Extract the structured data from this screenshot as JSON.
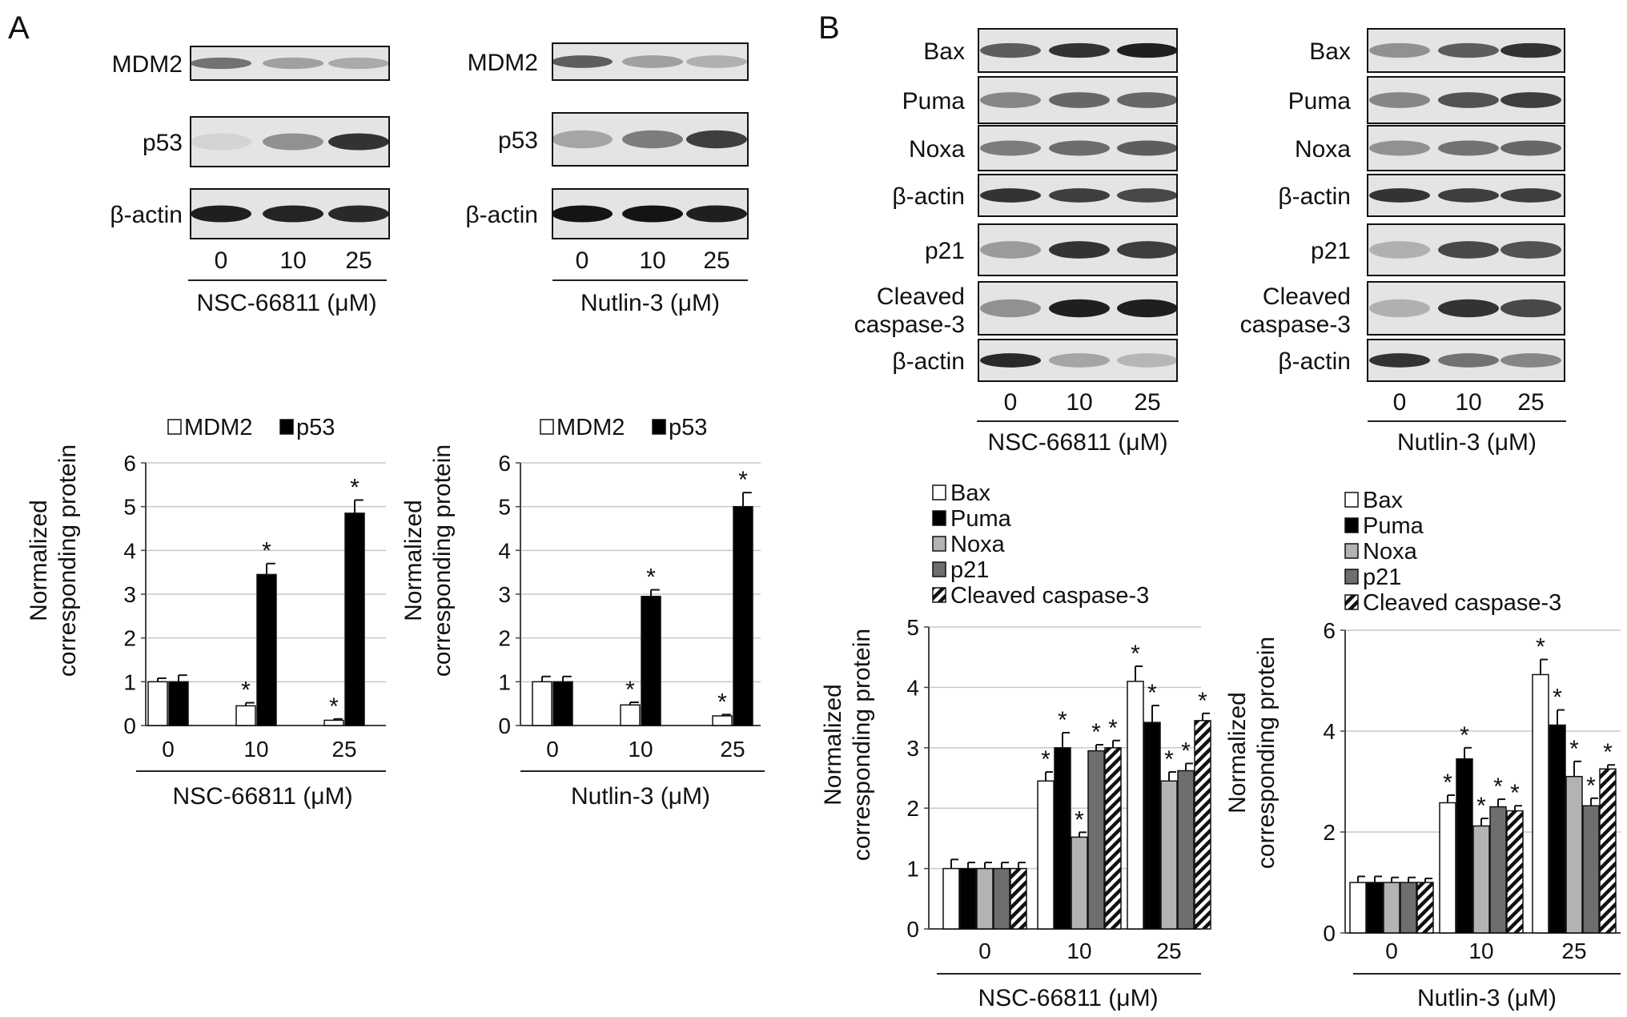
{
  "panels": {
    "a": {
      "label": "A",
      "blots": [
        {
          "bands": [
            "MDM2",
            "p53",
            "β-actin"
          ],
          "doses": [
            "0",
            "10",
            "25"
          ],
          "treatment": "NSC-66811 (μM)",
          "intensity": [
            [
              0.55,
              0.32,
              0.28
            ],
            [
              0.08,
              0.4,
              0.85
            ],
            [
              0.95,
              0.92,
              0.9
            ]
          ]
        },
        {
          "bands": [
            "MDM2",
            "p53",
            "β-actin"
          ],
          "doses": [
            "0",
            "10",
            "25"
          ],
          "treatment": "Nutlin-3 (μM)",
          "intensity": [
            [
              0.65,
              0.32,
              0.25
            ],
            [
              0.3,
              0.5,
              0.8
            ],
            [
              1.0,
              1.0,
              0.95
            ]
          ]
        }
      ]
    },
    "b": {
      "label": "B",
      "blots": [
        {
          "bands": [
            "Bax",
            "Puma",
            "Noxa",
            "β-actin",
            "p21",
            "Cleaved caspase-3",
            "β-actin"
          ],
          "doses": [
            "0",
            "10",
            "25"
          ],
          "treatment": "NSC-66811 (μM)",
          "intensity": [
            [
              0.65,
              0.85,
              0.95
            ],
            [
              0.45,
              0.6,
              0.6
            ],
            [
              0.5,
              0.58,
              0.65
            ],
            [
              0.85,
              0.8,
              0.75
            ],
            [
              0.35,
              0.85,
              0.8
            ],
            [
              0.4,
              0.95,
              0.95
            ],
            [
              0.9,
              0.3,
              0.22
            ]
          ]
        },
        {
          "bands": [
            "Bax",
            "Puma",
            "Noxa",
            "β-actin",
            "p21",
            "Cleaved caspase-3",
            "β-actin"
          ],
          "doses": [
            "0",
            "10",
            "25"
          ],
          "treatment": "Nutlin-3 (μM)",
          "intensity": [
            [
              0.4,
              0.65,
              0.85
            ],
            [
              0.45,
              0.7,
              0.8
            ],
            [
              0.4,
              0.55,
              0.6
            ],
            [
              0.85,
              0.8,
              0.8
            ],
            [
              0.25,
              0.75,
              0.7
            ],
            [
              0.25,
              0.85,
              0.75
            ],
            [
              0.85,
              0.55,
              0.45
            ]
          ]
        }
      ]
    }
  },
  "chart_data": [
    {
      "type": "bar",
      "panel": "A",
      "categories": [
        "0",
        "10",
        "25"
      ],
      "xlabel": "NSC-66811 (μM)",
      "ylabel": [
        "Normalized",
        "corresponding protein"
      ],
      "ylim": [
        0,
        6
      ],
      "yticks": [
        0,
        1,
        2,
        3,
        4,
        5,
        6
      ],
      "grid": true,
      "legend": "top",
      "series": [
        {
          "name": "MDM2",
          "pattern": "white",
          "values": [
            1.0,
            0.45,
            0.12
          ],
          "errors": [
            0.08,
            0.07,
            0.03
          ],
          "sig": [
            false,
            true,
            true
          ]
        },
        {
          "name": "p53",
          "pattern": "black",
          "values": [
            1.0,
            3.45,
            4.85
          ],
          "errors": [
            0.15,
            0.25,
            0.3
          ],
          "sig": [
            false,
            true,
            true
          ]
        }
      ]
    },
    {
      "type": "bar",
      "panel": "A",
      "categories": [
        "0",
        "10",
        "25"
      ],
      "xlabel": "Nutlin-3 (μM)",
      "ylabel": [
        "Normalized",
        "corresponding protein"
      ],
      "ylim": [
        0,
        6
      ],
      "yticks": [
        0,
        1,
        2,
        3,
        4,
        5,
        6
      ],
      "grid": true,
      "legend": "top",
      "series": [
        {
          "name": "MDM2",
          "pattern": "white",
          "values": [
            1.0,
            0.47,
            0.22
          ],
          "errors": [
            0.12,
            0.06,
            0.03
          ],
          "sig": [
            false,
            true,
            true
          ]
        },
        {
          "name": "p53",
          "pattern": "black",
          "values": [
            1.0,
            2.95,
            5.0
          ],
          "errors": [
            0.12,
            0.15,
            0.32
          ],
          "sig": [
            false,
            true,
            true
          ]
        }
      ]
    },
    {
      "type": "bar",
      "panel": "B",
      "categories": [
        "0",
        "10",
        "25"
      ],
      "xlabel": "NSC-66811 (μM)",
      "ylabel": [
        "Normalized",
        "corresponding protein"
      ],
      "ylim": [
        0,
        5
      ],
      "yticks": [
        0,
        1,
        2,
        3,
        4,
        5
      ],
      "grid": true,
      "legend": "top-left",
      "series": [
        {
          "name": "Bax",
          "pattern": "white",
          "values": [
            1.0,
            2.45,
            4.1
          ],
          "errors": [
            0.15,
            0.15,
            0.25
          ],
          "sig": [
            false,
            true,
            true
          ]
        },
        {
          "name": "Puma",
          "pattern": "black",
          "values": [
            1.0,
            3.0,
            3.42
          ],
          "errors": [
            0.1,
            0.25,
            0.28
          ],
          "sig": [
            false,
            true,
            true
          ]
        },
        {
          "name": "Noxa",
          "pattern": "lightgray",
          "values": [
            1.0,
            1.52,
            2.45
          ],
          "errors": [
            0.1,
            0.08,
            0.15
          ],
          "sig": [
            false,
            true,
            true
          ]
        },
        {
          "name": "p21",
          "pattern": "darkgray",
          "values": [
            1.0,
            2.95,
            2.62
          ],
          "errors": [
            0.1,
            0.1,
            0.12
          ],
          "sig": [
            false,
            true,
            true
          ]
        },
        {
          "name": "Cleaved caspase-3",
          "pattern": "hatched",
          "values": [
            1.0,
            3.0,
            3.45
          ],
          "errors": [
            0.1,
            0.12,
            0.12
          ],
          "sig": [
            false,
            true,
            true
          ]
        }
      ]
    },
    {
      "type": "bar",
      "panel": "B",
      "categories": [
        "0",
        "10",
        "25"
      ],
      "xlabel": "Nutlin-3 (μM)",
      "ylabel": [
        "Normalized",
        "corresponding protein"
      ],
      "ylim": [
        0,
        6
      ],
      "yticks": [
        0,
        2,
        4,
        6
      ],
      "grid": true,
      "legend": "top-left",
      "series": [
        {
          "name": "Bax",
          "pattern": "white",
          "values": [
            1.0,
            2.58,
            5.12
          ],
          "errors": [
            0.12,
            0.15,
            0.3
          ],
          "sig": [
            false,
            true,
            true
          ]
        },
        {
          "name": "Puma",
          "pattern": "black",
          "values": [
            1.0,
            3.45,
            4.12
          ],
          "errors": [
            0.12,
            0.22,
            0.3
          ],
          "sig": [
            false,
            true,
            true
          ]
        },
        {
          "name": "Noxa",
          "pattern": "lightgray",
          "values": [
            1.0,
            2.12,
            3.1
          ],
          "errors": [
            0.1,
            0.15,
            0.3
          ],
          "sig": [
            false,
            true,
            true
          ]
        },
        {
          "name": "p21",
          "pattern": "darkgray",
          "values": [
            1.0,
            2.5,
            2.52
          ],
          "errors": [
            0.1,
            0.15,
            0.15
          ],
          "sig": [
            false,
            true,
            true
          ]
        },
        {
          "name": "Cleaved caspase-3",
          "pattern": "hatched",
          "values": [
            1.0,
            2.42,
            3.25
          ],
          "errors": [
            0.08,
            0.1,
            0.08
          ],
          "sig": [
            false,
            true,
            true
          ]
        }
      ]
    }
  ]
}
